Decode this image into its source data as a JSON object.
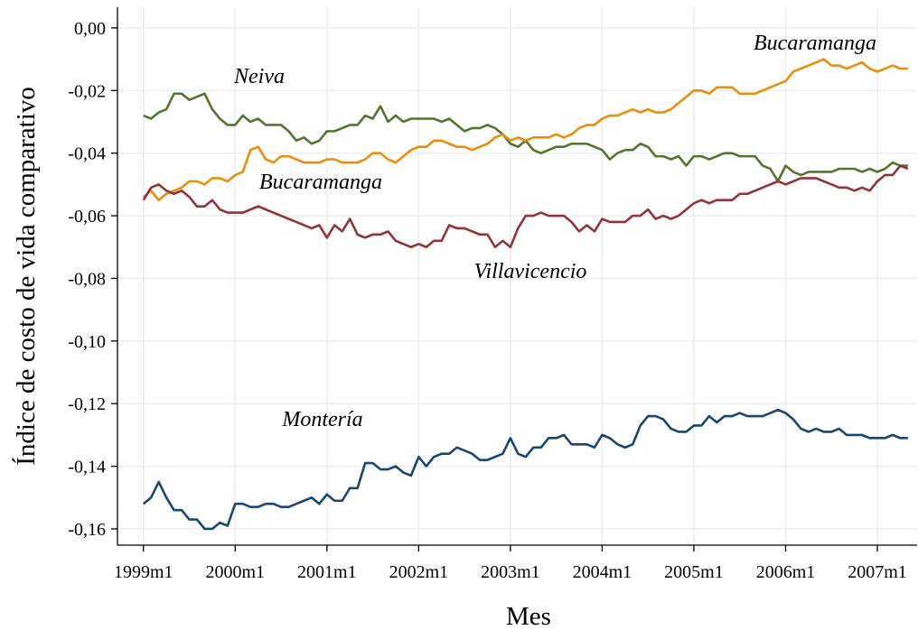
{
  "chart_data": {
    "type": "line",
    "y_label": "Índice de costo de vida comparativo",
    "x_label": "Mes",
    "grid": true,
    "x": [
      468,
      469,
      470,
      471,
      472,
      473,
      474,
      475,
      476,
      477,
      478,
      479,
      480,
      481,
      482,
      483,
      484,
      485,
      486,
      487,
      488,
      489,
      490,
      491,
      492,
      493,
      494,
      495,
      496,
      497,
      498,
      499,
      500,
      501,
      502,
      503,
      504,
      505,
      506,
      507,
      508,
      509,
      510,
      511,
      512,
      513,
      514,
      515,
      516,
      517,
      518,
      519,
      520,
      521,
      522,
      523,
      524,
      525,
      526,
      527,
      528,
      529,
      530,
      531,
      532,
      533,
      534,
      535,
      536,
      537,
      538,
      539,
      540,
      541,
      542,
      543,
      544,
      545,
      546,
      547,
      548,
      549,
      550,
      551,
      552,
      553,
      554,
      555,
      556,
      557,
      558,
      559,
      560,
      561,
      562,
      563,
      564,
      565,
      566,
      567,
      568
    ],
    "xlim": [
      464.6,
      569.2
    ],
    "xticks": [
      {
        "value": 468,
        "label": "1999m1"
      },
      {
        "value": 480,
        "label": "2000m1"
      },
      {
        "value": 492,
        "label": "2001m1"
      },
      {
        "value": 504,
        "label": "2002m1"
      },
      {
        "value": 516,
        "label": "2003m1"
      },
      {
        "value": 528,
        "label": "2004m1"
      },
      {
        "value": 540,
        "label": "2005m1"
      },
      {
        "value": 552,
        "label": "2006m1"
      },
      {
        "value": 564,
        "label": "2007m1"
      }
    ],
    "ylim": [
      -0.1652,
      0.0066
    ],
    "yticks": [
      {
        "value": 0,
        "label": "0,00"
      },
      {
        "value": -0.02,
        "label": "-0,02"
      },
      {
        "value": -0.04,
        "label": "-0,04"
      },
      {
        "value": -0.06,
        "label": "-0,06"
      },
      {
        "value": -0.08,
        "label": "-0,08"
      },
      {
        "value": -0.1,
        "label": "-0,10"
      },
      {
        "value": -0.12,
        "label": "-0,12"
      },
      {
        "value": -0.14,
        "label": "-0,14"
      },
      {
        "value": -0.16,
        "label": "-0,16"
      }
    ],
    "series": [
      {
        "name": "Montería",
        "color": "#1a476f",
        "values": [
          -0.152,
          -0.15,
          -0.145,
          -0.15,
          -0.154,
          -0.154,
          -0.157,
          -0.157,
          -0.16,
          -0.16,
          -0.158,
          -0.159,
          -0.152,
          -0.152,
          -0.153,
          -0.153,
          -0.152,
          -0.152,
          -0.153,
          -0.153,
          -0.152,
          -0.151,
          -0.15,
          -0.152,
          -0.149,
          -0.151,
          -0.151,
          -0.147,
          -0.147,
          -0.139,
          -0.139,
          -0.141,
          -0.141,
          -0.14,
          -0.142,
          -0.143,
          -0.137,
          -0.14,
          -0.137,
          -0.136,
          -0.136,
          -0.134,
          -0.135,
          -0.136,
          -0.138,
          -0.138,
          -0.137,
          -0.136,
          -0.131,
          -0.136,
          -0.137,
          -0.134,
          -0.134,
          -0.131,
          -0.131,
          -0.13,
          -0.133,
          -0.133,
          -0.133,
          -0.134,
          -0.13,
          -0.131,
          -0.133,
          -0.134,
          -0.133,
          -0.127,
          -0.124,
          -0.124,
          -0.125,
          -0.128,
          -0.129,
          -0.129,
          -0.127,
          -0.127,
          -0.124,
          -0.126,
          -0.124,
          -0.124,
          -0.123,
          -0.124,
          -0.124,
          -0.124,
          -0.123,
          -0.122,
          -0.123,
          -0.125,
          -0.128,
          -0.129,
          -0.128,
          -0.129,
          -0.129,
          -0.128,
          -0.13,
          -0.13,
          -0.13,
          -0.131,
          -0.131,
          -0.131,
          -0.13,
          -0.131,
          -0.131
        ]
      },
      {
        "name": "Neiva",
        "color": "#55752f",
        "values": [
          -0.028,
          -0.029,
          -0.027,
          -0.026,
          -0.021,
          -0.021,
          -0.023,
          -0.022,
          -0.021,
          -0.026,
          -0.029,
          -0.031,
          -0.031,
          -0.028,
          -0.03,
          -0.029,
          -0.031,
          -0.031,
          -0.031,
          -0.033,
          -0.036,
          -0.035,
          -0.037,
          -0.036,
          -0.033,
          -0.033,
          -0.032,
          -0.031,
          -0.031,
          -0.028,
          -0.029,
          -0.025,
          -0.03,
          -0.028,
          -0.03,
          -0.029,
          -0.029,
          -0.029,
          -0.029,
          -0.03,
          -0.029,
          -0.031,
          -0.033,
          -0.032,
          -0.032,
          -0.031,
          -0.032,
          -0.034,
          -0.037,
          -0.038,
          -0.036,
          -0.039,
          -0.04,
          -0.039,
          -0.038,
          -0.038,
          -0.037,
          -0.037,
          -0.037,
          -0.038,
          -0.039,
          -0.042,
          -0.04,
          -0.039,
          -0.039,
          -0.037,
          -0.038,
          -0.041,
          -0.041,
          -0.042,
          -0.041,
          -0.044,
          -0.041,
          -0.041,
          -0.042,
          -0.041,
          -0.04,
          -0.04,
          -0.041,
          -0.041,
          -0.041,
          -0.044,
          -0.045,
          -0.049,
          -0.044,
          -0.046,
          -0.047,
          -0.046,
          -0.046,
          -0.046,
          -0.046,
          -0.045,
          -0.045,
          -0.045,
          -0.046,
          -0.045,
          -0.046,
          -0.045,
          -0.043,
          -0.044,
          -0.044
        ]
      },
      {
        "name": "Bucaramanga",
        "color": "#e8900c",
        "values": [
          -0.054,
          -0.052,
          -0.055,
          -0.053,
          -0.052,
          -0.051,
          -0.049,
          -0.049,
          -0.05,
          -0.048,
          -0.048,
          -0.049,
          -0.047,
          -0.046,
          -0.039,
          -0.038,
          -0.042,
          -0.043,
          -0.041,
          -0.041,
          -0.042,
          -0.043,
          -0.043,
          -0.043,
          -0.042,
          -0.042,
          -0.043,
          -0.043,
          -0.043,
          -0.042,
          -0.04,
          -0.04,
          -0.042,
          -0.043,
          -0.041,
          -0.039,
          -0.038,
          -0.038,
          -0.036,
          -0.036,
          -0.037,
          -0.038,
          -0.038,
          -0.039,
          -0.038,
          -0.037,
          -0.035,
          -0.034,
          -0.036,
          -0.035,
          -0.036,
          -0.035,
          -0.035,
          -0.035,
          -0.034,
          -0.035,
          -0.034,
          -0.032,
          -0.031,
          -0.031,
          -0.029,
          -0.028,
          -0.028,
          -0.027,
          -0.026,
          -0.027,
          -0.026,
          -0.027,
          -0.027,
          -0.026,
          -0.024,
          -0.022,
          -0.02,
          -0.02,
          -0.021,
          -0.019,
          -0.019,
          -0.019,
          -0.021,
          -0.021,
          -0.021,
          -0.02,
          -0.019,
          -0.018,
          -0.017,
          -0.014,
          -0.013,
          -0.012,
          -0.011,
          -0.01,
          -0.012,
          -0.012,
          -0.013,
          -0.012,
          -0.011,
          -0.013,
          -0.014,
          -0.013,
          -0.012,
          -0.013,
          -0.013
        ]
      },
      {
        "name": "Villavicencio",
        "color": "#90353b",
        "values": [
          -0.055,
          -0.051,
          -0.05,
          -0.052,
          -0.053,
          -0.052,
          -0.054,
          -0.057,
          -0.057,
          -0.055,
          -0.058,
          -0.059,
          -0.059,
          -0.059,
          -0.058,
          -0.057,
          -0.058,
          -0.059,
          -0.06,
          -0.061,
          -0.062,
          -0.063,
          -0.064,
          -0.063,
          -0.067,
          -0.063,
          -0.065,
          -0.061,
          -0.066,
          -0.067,
          -0.066,
          -0.066,
          -0.065,
          -0.068,
          -0.069,
          -0.07,
          -0.069,
          -0.07,
          -0.068,
          -0.068,
          -0.063,
          -0.064,
          -0.064,
          -0.065,
          -0.066,
          -0.066,
          -0.07,
          -0.068,
          -0.07,
          -0.064,
          -0.06,
          -0.06,
          -0.059,
          -0.06,
          -0.06,
          -0.06,
          -0.062,
          -0.065,
          -0.063,
          -0.065,
          -0.061,
          -0.062,
          -0.062,
          -0.062,
          -0.06,
          -0.06,
          -0.058,
          -0.061,
          -0.06,
          -0.061,
          -0.06,
          -0.058,
          -0.056,
          -0.055,
          -0.056,
          -0.055,
          -0.055,
          -0.055,
          -0.053,
          -0.053,
          -0.052,
          -0.051,
          -0.05,
          -0.049,
          -0.05,
          -0.049,
          -0.048,
          -0.048,
          -0.048,
          -0.049,
          -0.05,
          -0.051,
          -0.051,
          -0.052,
          -0.051,
          -0.052,
          -0.049,
          -0.047,
          -0.047,
          -0.044,
          -0.045
        ]
      }
    ]
  }
}
